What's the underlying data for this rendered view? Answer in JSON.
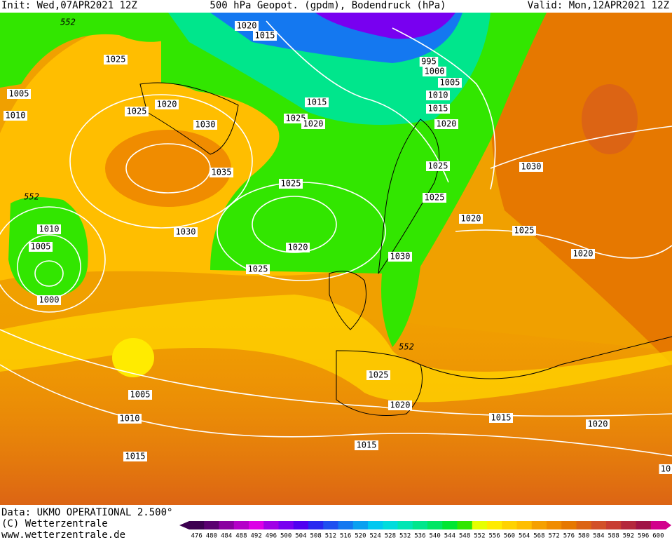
{
  "header": {
    "init": "Init: Wed,07APR2021 12Z",
    "title": "500 hPa Geopot. (gpdm), Bodendruck (hPa)",
    "valid": "Valid: Mon,12APR2021 12Z"
  },
  "contour_labels": [
    552,
    1020,
    1015,
    1025,
    995,
    1000,
    1005,
    1005,
    1010,
    1010,
    1015,
    1015,
    1020,
    1025,
    1030,
    1025,
    1020,
    1020,
    1035,
    1025,
    1030,
    1025,
    1025,
    552,
    1020,
    1030,
    1010,
    1025,
    1020,
    1005,
    1020,
    1030,
    1025,
    1000,
    552,
    1025,
    1005,
    1020,
    1010,
    1015,
    1020,
    1015,
    1015,
    10
  ],
  "footer": {
    "data": "Data: UKMO OPERATIONAL 2.500°",
    "copyright": "(C) Wetterzentrale",
    "url": "www.wetterzentrale.de"
  },
  "colorbar": {
    "levels": [
      476,
      480,
      484,
      488,
      492,
      496,
      500,
      504,
      508,
      512,
      516,
      520,
      524,
      528,
      532,
      536,
      540,
      544,
      548,
      552,
      556,
      560,
      564,
      568,
      572,
      576,
      580,
      584,
      588,
      592,
      596,
      600
    ],
    "colors": [
      "#3c0050",
      "#5a0070",
      "#8a00a0",
      "#b400c8",
      "#dc00e6",
      "#a000e6",
      "#7800f0",
      "#5000f0",
      "#2828f0",
      "#1e50f0",
      "#1478f0",
      "#0aa0f0",
      "#00c8f0",
      "#00dcdc",
      "#00e6b4",
      "#00e68c",
      "#00e664",
      "#00e632",
      "#32e600",
      "#e6ff00",
      "#ffeb00",
      "#ffd200",
      "#ffbe00",
      "#f5a000",
      "#f08c00",
      "#e67800",
      "#dc6414",
      "#d25028",
      "#c83c32",
      "#b4283c",
      "#a01446",
      "#d2008c"
    ]
  }
}
